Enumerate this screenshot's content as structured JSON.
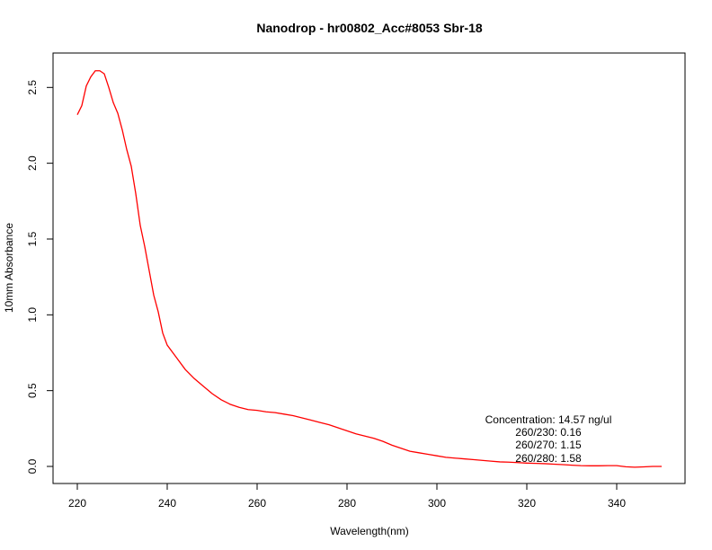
{
  "chart_data": {
    "type": "line",
    "title": "Nanodrop - hr00802_Acc#8053 Sbr-18",
    "xlabel": "Wavelength(nm)",
    "ylabel": "10mm Absorbance",
    "xlim": [
      220,
      350
    ],
    "ylim": [
      0,
      2.65
    ],
    "grid": false,
    "x_ticks": [
      220,
      240,
      260,
      280,
      300,
      320,
      340
    ],
    "y_ticks": [
      0.0,
      0.5,
      1.0,
      1.5,
      2.0,
      2.5
    ],
    "x_tick_labels": [
      "220",
      "240",
      "260",
      "280",
      "300",
      "320",
      "340"
    ],
    "y_tick_labels": [
      "0.0",
      "0.5",
      "1.0",
      "1.5",
      "2.0",
      "2.5"
    ],
    "line_color": "#ff0000",
    "series": [
      {
        "x": [
          220,
          221,
          222,
          223,
          224,
          225,
          226,
          227,
          228,
          229,
          230,
          231,
          232,
          233,
          234,
          235,
          236,
          237,
          238,
          239,
          240,
          242,
          244,
          246,
          248,
          250,
          252,
          254,
          256,
          258,
          260,
          262,
          264,
          266,
          268,
          270,
          272,
          274,
          276,
          278,
          280,
          282,
          284,
          286,
          288,
          290,
          292,
          294,
          296,
          298,
          300,
          302,
          304,
          306,
          308,
          310,
          312,
          314,
          316,
          318,
          320,
          322,
          324,
          326,
          328,
          330,
          332,
          334,
          336,
          338,
          340,
          342,
          344,
          346,
          348,
          350
        ],
        "y": [
          2.32,
          2.38,
          2.51,
          2.57,
          2.61,
          2.61,
          2.59,
          2.5,
          2.4,
          2.33,
          2.22,
          2.09,
          1.98,
          1.8,
          1.59,
          1.45,
          1.29,
          1.13,
          1.02,
          0.88,
          0.8,
          0.72,
          0.64,
          0.58,
          0.53,
          0.48,
          0.44,
          0.41,
          0.39,
          0.375,
          0.37,
          0.36,
          0.355,
          0.345,
          0.335,
          0.32,
          0.305,
          0.29,
          0.275,
          0.255,
          0.235,
          0.215,
          0.2,
          0.185,
          0.165,
          0.14,
          0.12,
          0.1,
          0.09,
          0.08,
          0.07,
          0.06,
          0.055,
          0.05,
          0.045,
          0.04,
          0.035,
          0.03,
          0.028,
          0.025,
          0.022,
          0.02,
          0.018,
          0.015,
          0.012,
          0.008,
          0.005,
          0.004,
          0.004,
          0.005,
          0.005,
          -0.002,
          -0.005,
          -0.003,
          0.0,
          0.0
        ]
      }
    ],
    "annotations": [
      "Concentration: 14.57 ng/ul",
      "260/230: 0.16",
      "260/270: 1.15",
      "260/280: 1.58"
    ]
  }
}
